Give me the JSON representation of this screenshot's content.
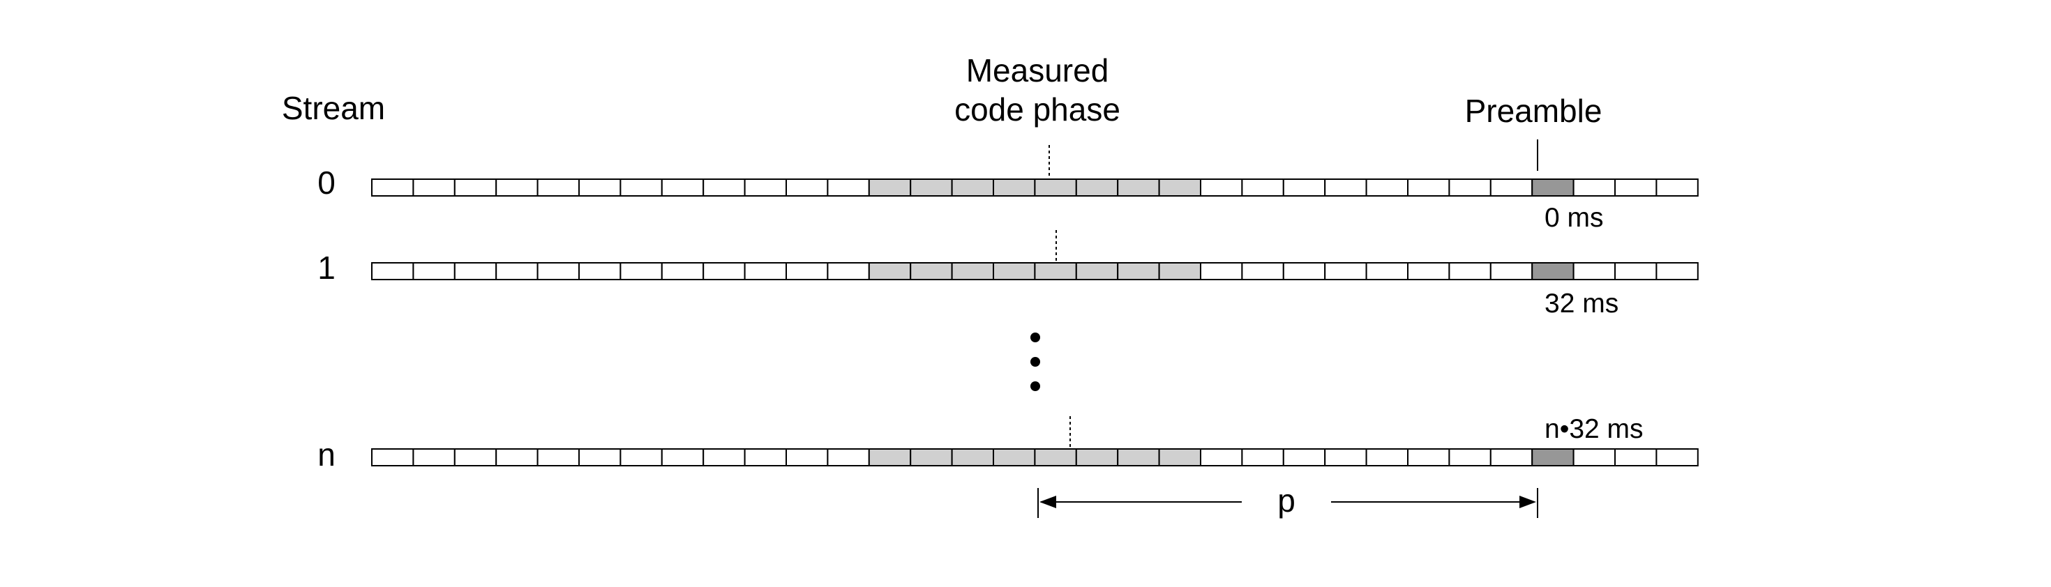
{
  "labels": {
    "stream_header": "Stream",
    "measured_line1": "Measured",
    "measured_line2": "code phase",
    "preamble": "Preamble",
    "period": "p"
  },
  "streams": [
    {
      "id": "0",
      "time": "0 ms"
    },
    {
      "id": "1",
      "time": "32 ms"
    },
    {
      "id": "n",
      "time": "n•32 ms"
    }
  ],
  "colors": {
    "cell_empty": "#ffffff",
    "cell_window": "#d0d0d0",
    "cell_preamble": "#979797",
    "stroke": "#000000"
  }
}
